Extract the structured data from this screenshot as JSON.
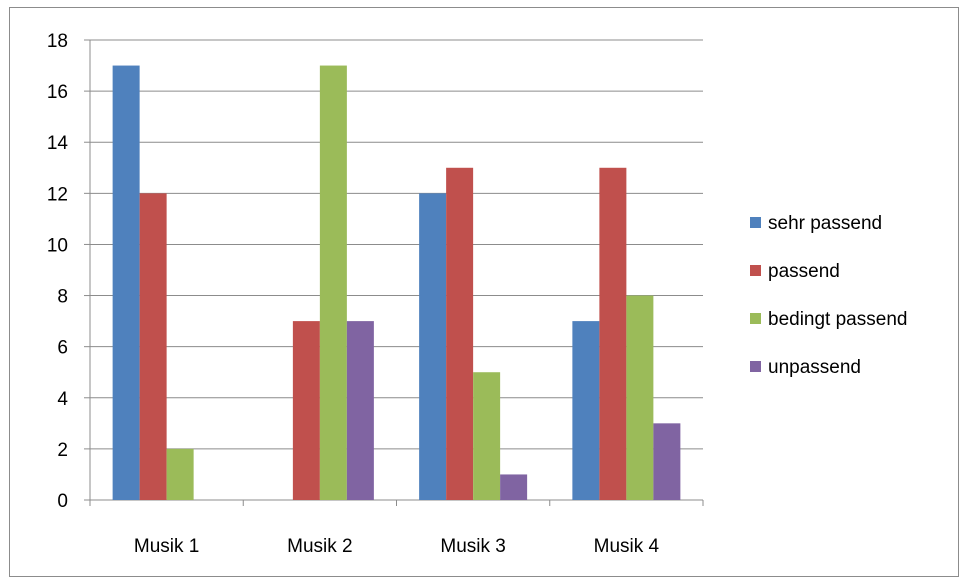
{
  "chart_data": {
    "type": "bar",
    "categories": [
      "Musik 1",
      "Musik 2",
      "Musik 3",
      "Musik 4"
    ],
    "series": [
      {
        "name": "sehr passend",
        "values": [
          17,
          0,
          12,
          7
        ],
        "color": "#4f81bd"
      },
      {
        "name": "passend",
        "values": [
          12,
          7,
          13,
          13
        ],
        "color": "#c0504d"
      },
      {
        "name": "bedingt passend",
        "values": [
          2,
          17,
          5,
          8
        ],
        "color": "#9bbb59"
      },
      {
        "name": "unpassend",
        "values": [
          0,
          7,
          1,
          3
        ],
        "color": "#8064a2"
      }
    ],
    "title": "",
    "xlabel": "",
    "ylabel": "",
    "ylim": [
      0,
      18
    ],
    "yticks": [
      0,
      2,
      4,
      6,
      8,
      10,
      12,
      14,
      16,
      18
    ],
    "grid": "horizontal",
    "legend_position": "right"
  }
}
